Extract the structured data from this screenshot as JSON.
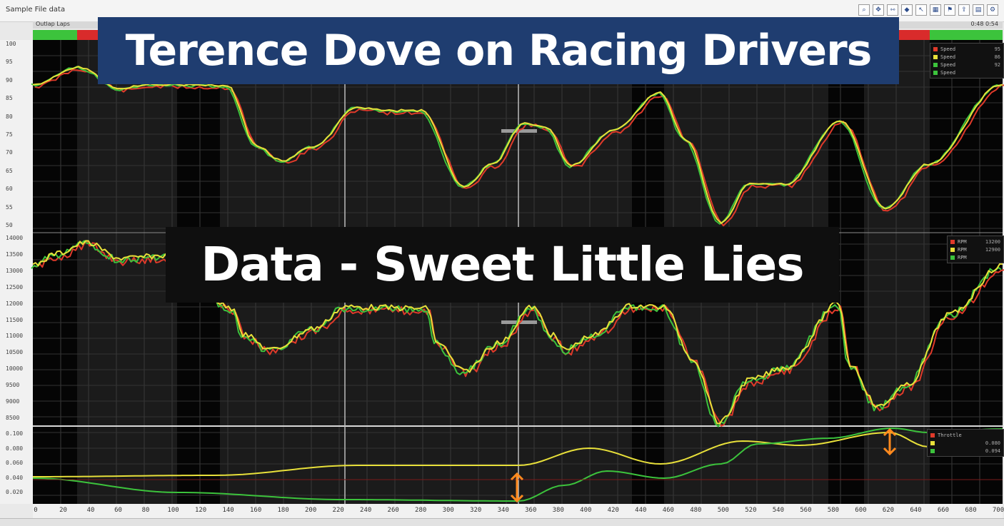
{
  "window": {
    "title": "Sample File  data"
  },
  "toolbar": {
    "icons": [
      "zoom-icon",
      "pan-icon",
      "measure-icon",
      "marker-icon",
      "cursor-icon",
      "layout-icon",
      "flag-icon",
      "export-icon",
      "chart-icon",
      "settings-icon"
    ]
  },
  "strip": {
    "label": "Outlap  Laps",
    "nums": "0:48  0:54"
  },
  "colors": {
    "red": "#e03a2a",
    "yellow": "#e8e03a",
    "green": "#3cc33c",
    "background": "#1b1b1b"
  },
  "overlay": {
    "title": "Terence Dove on Racing Drivers",
    "subtitle": "Data - Sweet Little Lies"
  },
  "panels": {
    "speed": {
      "ticks": [
        "100",
        "95",
        "90",
        "85",
        "80",
        "75",
        "70",
        "65",
        "60",
        "55",
        "50"
      ],
      "legend": [
        {
          "label": "Speed",
          "value": "95"
        },
        {
          "label": "Speed",
          "value": "86"
        },
        {
          "label": "Speed",
          "value": "92"
        },
        {
          "label": "Speed",
          "value": ""
        }
      ]
    },
    "rpm": {
      "ticks": [
        "14000",
        "13500",
        "13000",
        "12500",
        "12000",
        "11500",
        "11000",
        "10500",
        "10000",
        "9500",
        "9000",
        "8500"
      ],
      "legend": [
        {
          "label": "RPM",
          "value": "13200"
        },
        {
          "label": "RPM",
          "value": "12900"
        },
        {
          "label": "RPM",
          "value": ""
        }
      ]
    },
    "throttle": {
      "ticks": [
        "0.100",
        "0.080",
        "0.060",
        "0.040",
        "0.020"
      ],
      "legend": [
        {
          "label": "Throttle",
          "value": ""
        },
        {
          "label": "",
          "value": "0.080"
        },
        {
          "label": "",
          "value": "0.094"
        }
      ]
    }
  },
  "xaxis": {
    "ticks": [
      "0",
      "20",
      "40",
      "60",
      "80",
      "100",
      "120",
      "140",
      "160",
      "180",
      "200",
      "220",
      "240",
      "260",
      "280",
      "300",
      "320",
      "340",
      "360",
      "380",
      "400",
      "420",
      "440",
      "460",
      "480",
      "500",
      "520",
      "540",
      "560",
      "580",
      "600",
      "620",
      "640",
      "660",
      "680",
      "700"
    ]
  }
}
